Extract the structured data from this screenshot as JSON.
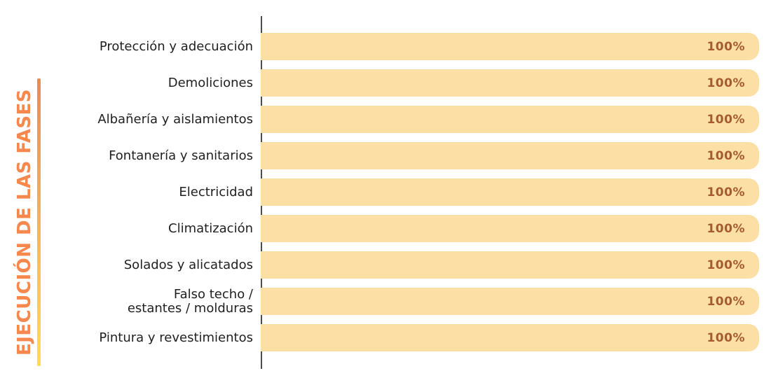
{
  "colors": {
    "title": "#F6874D",
    "rule_gradient_top": "#F6874D",
    "rule_gradient_bottom": "#FFDD55",
    "axis": "#4D4D4D",
    "bar_fill": "#FBDFA4",
    "value_text": "#A55B31",
    "category_text": "#1F1F1F",
    "background": "#FFFFFF"
  },
  "chart_data": {
    "type": "bar",
    "orientation": "horizontal",
    "title": "EJECUCIÓN DE LAS FASES",
    "xlabel": "",
    "ylabel": "EJECUCIÓN DE LAS FASES",
    "xlim": [
      0,
      100
    ],
    "grid": false,
    "legend": false,
    "categories": [
      "Protección y adecuación",
      "Demoliciones",
      "Albañería y aislamientos",
      "Fontanería y sanitarios",
      "Electricidad",
      "Climatización",
      "Solados y alicatados",
      "Falso techo /\nestantes / molduras",
      "Pintura y revestimientos"
    ],
    "values": [
      100,
      100,
      100,
      100,
      100,
      100,
      100,
      100,
      100
    ],
    "value_labels": [
      "100%",
      "100%",
      "100%",
      "100%",
      "100%",
      "100%",
      "100%",
      "100%",
      "100%"
    ]
  }
}
